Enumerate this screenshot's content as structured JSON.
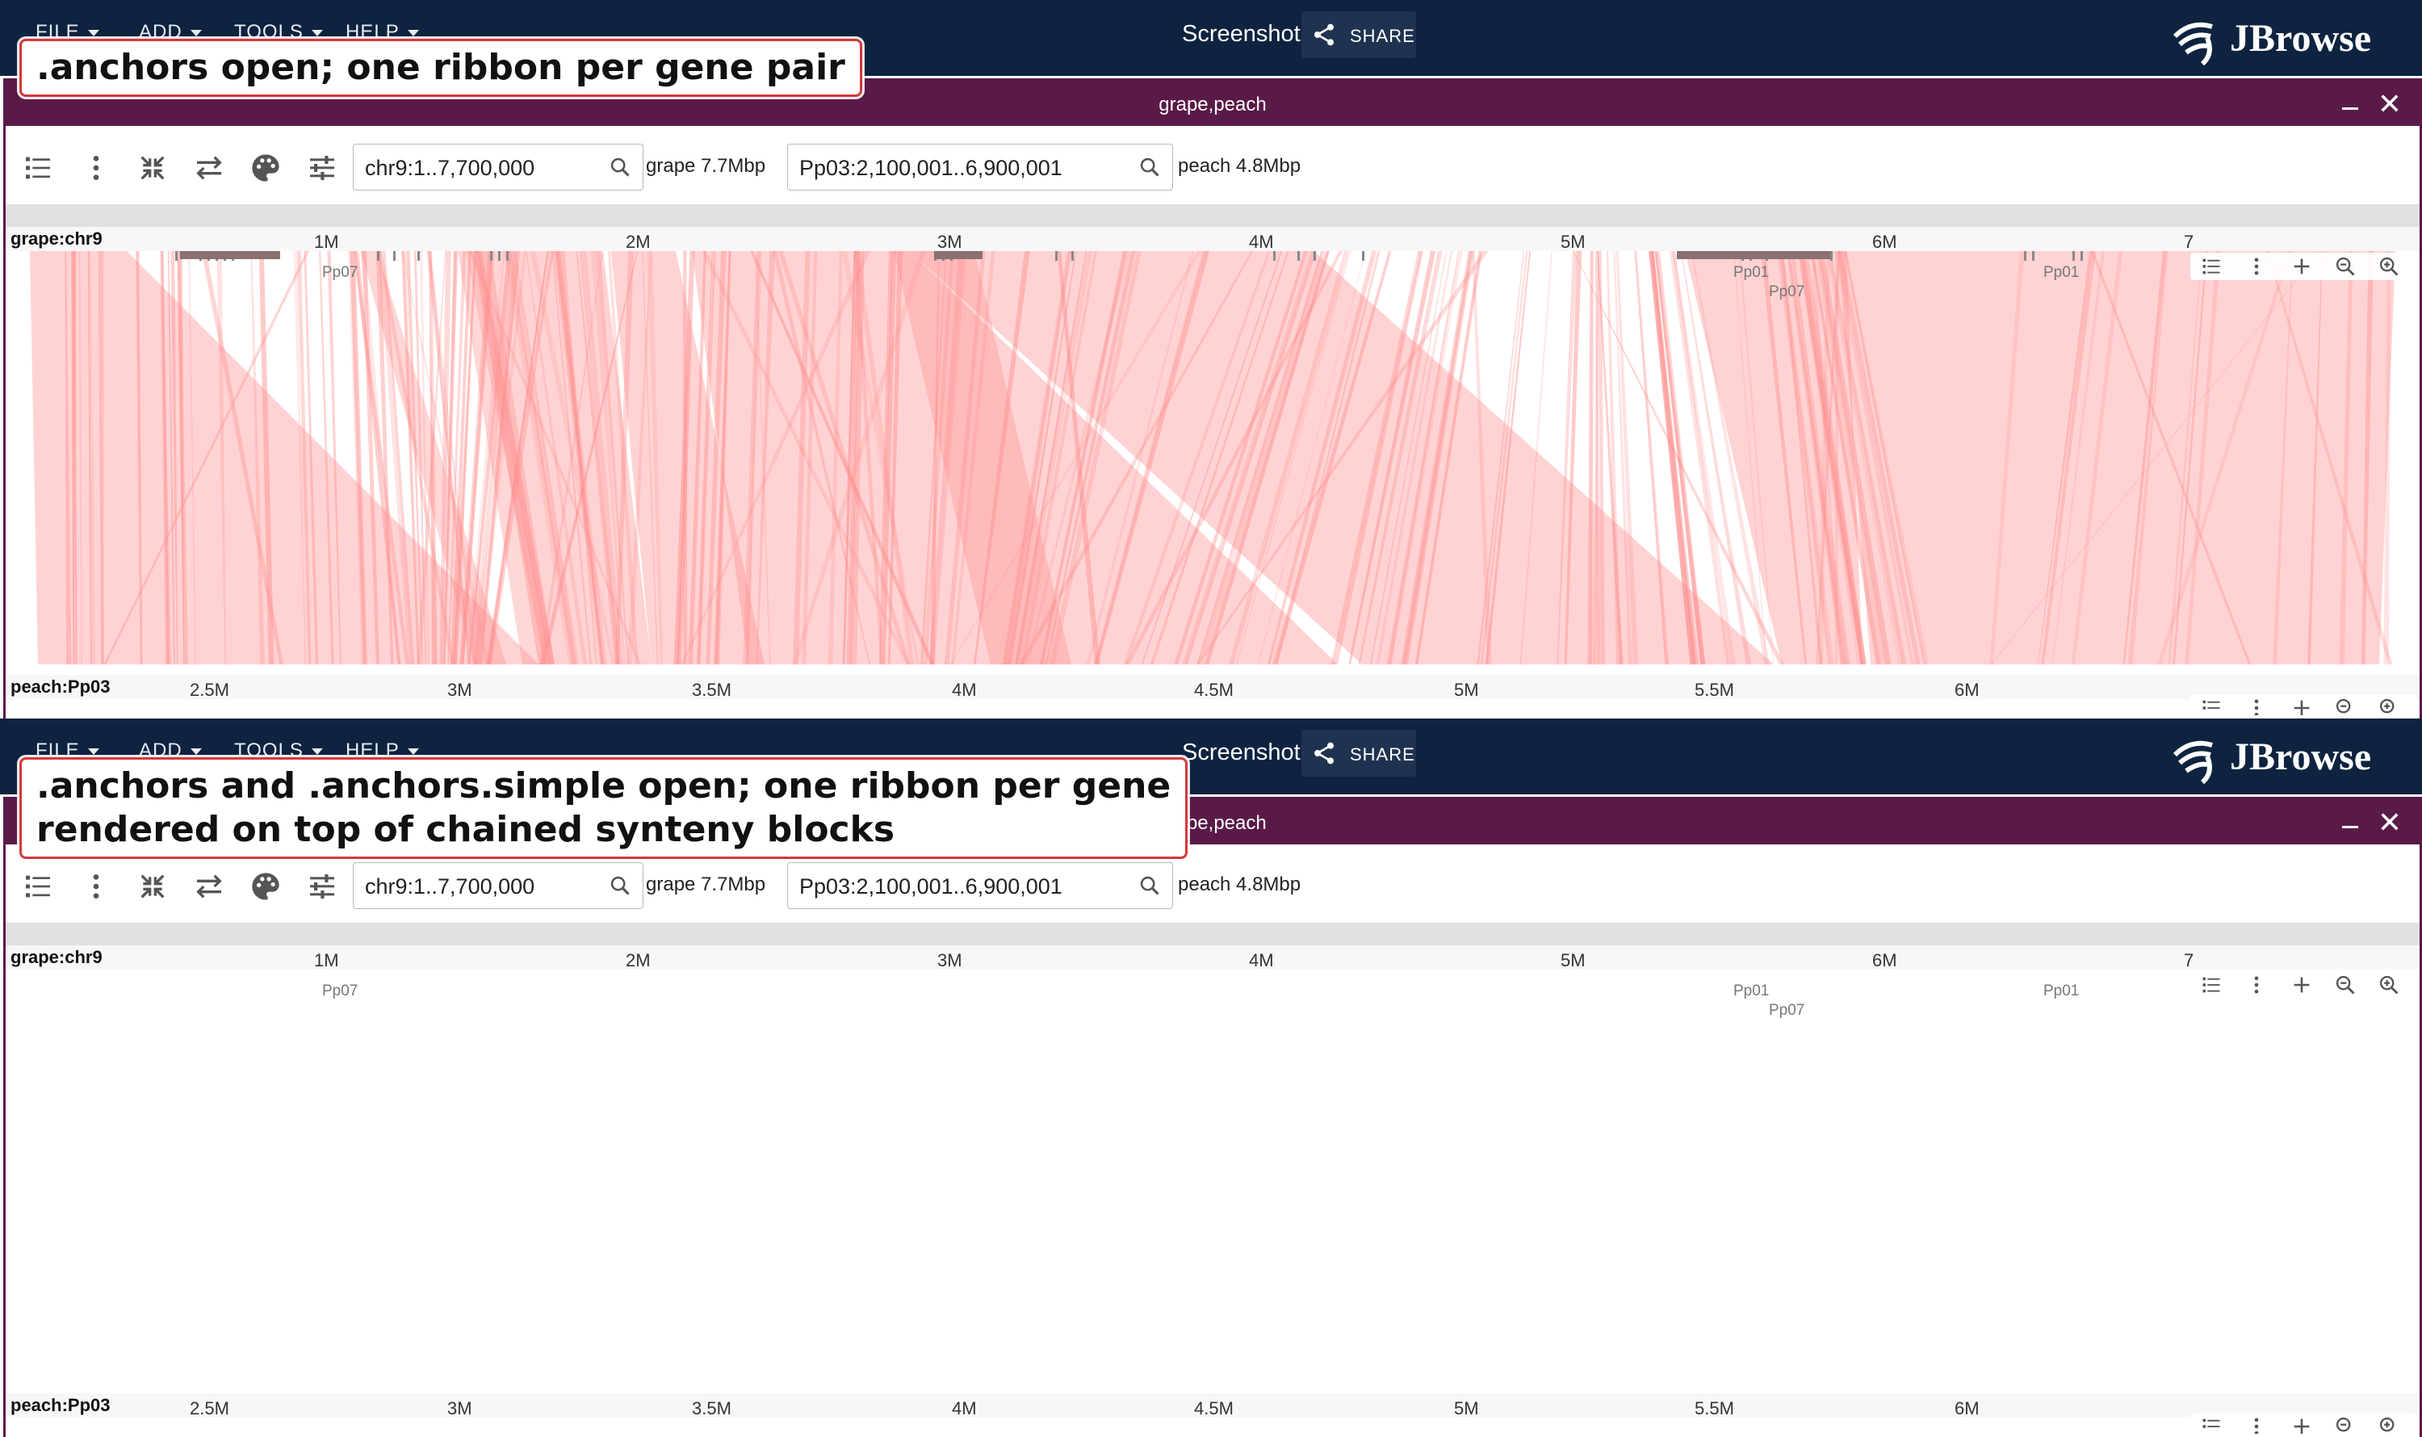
{
  "menu": [
    "FILE",
    "ADD",
    "TOOLS",
    "HELP"
  ],
  "topbar": {
    "screenshot_label": "Screenshot",
    "share_label": "SHARE",
    "logo_text": "JBrowse"
  },
  "view": {
    "title": "grape,peach",
    "loc1": "chr9:1..7,700,000",
    "asm1": "grape 7.7Mbp",
    "loc2": "Pp03:2,100,001..6,900,001",
    "asm2": "peach 4.8Mbp"
  },
  "top_ruler": {
    "name": "grape:chr9",
    "ticks": [
      "1M",
      "2M",
      "3M",
      "4M",
      "5M",
      "6M",
      "7"
    ]
  },
  "bottom_ruler": {
    "name": "peach:Pp03",
    "ticks": [
      "2.5M",
      "3M",
      "3.5M",
      "4M",
      "4.5M",
      "5M",
      "5.5M",
      "6M"
    ]
  },
  "feature_labels": [
    "Pp07",
    "Pp01",
    "Pp07",
    "Pp01"
  ],
  "panels": [
    {
      "caption_lines": [
        ".anchors open; one ribbon per gene pair"
      ],
      "mode": "anchors"
    },
    {
      "caption_lines": [
        ".anchors and .anchors.simple open; one ribbon per gene",
        "rendered on top of chained synteny blocks"
      ],
      "mode": "anchors+simple"
    }
  ],
  "colors": {
    "topbar": "#0d233f",
    "view_header": "#5a1a48",
    "ribbon": "#ff8c8c",
    "caption_border": "#d33a3a"
  }
}
